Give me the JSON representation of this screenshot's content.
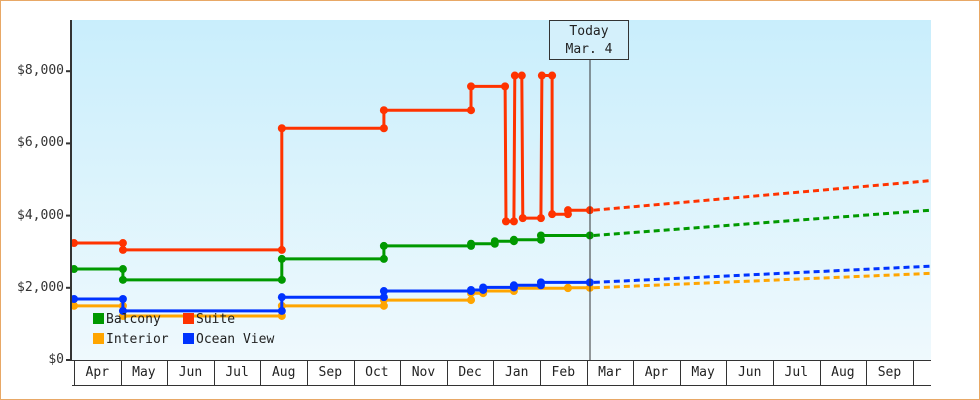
{
  "chart_data": {
    "type": "line",
    "title": "",
    "xlabel": "",
    "ylabel": "",
    "ylim": [
      0,
      9300
    ],
    "yticks": [
      {
        "value": 0,
        "label": "$0"
      },
      {
        "value": 2000,
        "label": "$2,000"
      },
      {
        "value": 4000,
        "label": "$4,000"
      },
      {
        "value": 6000,
        "label": "$6,000"
      },
      {
        "value": 8000,
        "label": "$8,000"
      }
    ],
    "categories": [
      "Apr",
      "May",
      "Jun",
      "Jul",
      "Aug",
      "Sep",
      "Oct",
      "Nov",
      "Dec",
      "Jan",
      "Feb",
      "Mar",
      "Apr",
      "May",
      "Jun",
      "Jul",
      "Aug",
      "Sep"
    ],
    "x_note": "x is fractional month offset from start of first Apr",
    "today_marker": {
      "line1": "Today",
      "line2": "Mar. 4",
      "x": 11.07
    },
    "series": [
      {
        "name": "Suite",
        "color": "#ff3300",
        "values": [
          [
            0,
            3240
          ],
          [
            1.05,
            3240
          ],
          [
            1.05,
            3050
          ],
          [
            4.46,
            3050
          ],
          [
            4.46,
            6420
          ],
          [
            6.65,
            6420
          ],
          [
            6.65,
            6920
          ],
          [
            8.52,
            6920
          ],
          [
            8.52,
            7580
          ],
          [
            9.25,
            7580
          ],
          [
            9.27,
            3840
          ],
          [
            9.44,
            3840
          ],
          [
            9.46,
            7880
          ],
          [
            9.61,
            7880
          ],
          [
            9.63,
            3930
          ],
          [
            10.02,
            3930
          ],
          [
            10.04,
            7880
          ],
          [
            10.26,
            7880
          ],
          [
            10.26,
            4040
          ],
          [
            10.6,
            4040
          ],
          [
            10.6,
            4150
          ],
          [
            11.07,
            4150
          ]
        ],
        "forecast": [
          [
            11.07,
            4150
          ],
          [
            18.39,
            4970
          ]
        ]
      },
      {
        "name": "Balcony",
        "color": "#009900",
        "values": [
          [
            0,
            2520
          ],
          [
            1.05,
            2520
          ],
          [
            1.05,
            2220
          ],
          [
            4.46,
            2220
          ],
          [
            4.46,
            2800
          ],
          [
            6.65,
            2800
          ],
          [
            6.65,
            3160
          ],
          [
            8.52,
            3160
          ],
          [
            8.52,
            3220
          ],
          [
            9.03,
            3220
          ],
          [
            9.03,
            3290
          ],
          [
            9.44,
            3290
          ],
          [
            9.44,
            3330
          ],
          [
            10.02,
            3330
          ],
          [
            10.02,
            3450
          ],
          [
            11.07,
            3450
          ]
        ],
        "forecast": [
          [
            11.07,
            3450
          ],
          [
            18.39,
            4150
          ]
        ]
      },
      {
        "name": "Interior",
        "color": "#ffa500",
        "values": [
          [
            0,
            1500
          ],
          [
            1.05,
            1500
          ],
          [
            1.05,
            1220
          ],
          [
            4.46,
            1220
          ],
          [
            4.46,
            1500
          ],
          [
            6.65,
            1500
          ],
          [
            6.65,
            1660
          ],
          [
            8.52,
            1660
          ],
          [
            8.52,
            1850
          ],
          [
            8.78,
            1850
          ],
          [
            8.78,
            1910
          ],
          [
            9.44,
            1910
          ],
          [
            9.44,
            1990
          ],
          [
            10.6,
            1990
          ],
          [
            10.6,
            2000
          ],
          [
            11.07,
            2000
          ]
        ],
        "forecast": [
          [
            11.07,
            2000
          ],
          [
            18.39,
            2400
          ]
        ]
      },
      {
        "name": "Ocean View",
        "color": "#0033ff",
        "values": [
          [
            0,
            1690
          ],
          [
            1.05,
            1690
          ],
          [
            1.05,
            1360
          ],
          [
            4.46,
            1360
          ],
          [
            4.46,
            1740
          ],
          [
            6.65,
            1740
          ],
          [
            6.65,
            1910
          ],
          [
            8.52,
            1910
          ],
          [
            8.52,
            1940
          ],
          [
            8.78,
            1940
          ],
          [
            8.78,
            2010
          ],
          [
            9.44,
            2010
          ],
          [
            9.44,
            2070
          ],
          [
            10.02,
            2070
          ],
          [
            10.02,
            2150
          ],
          [
            11.07,
            2150
          ]
        ],
        "forecast": [
          [
            11.07,
            2150
          ],
          [
            18.39,
            2600
          ]
        ]
      }
    ],
    "legend": {
      "position": "bottom-left inside plot",
      "entries": [
        "Balcony",
        "Suite",
        "Interior",
        "Ocean View"
      ]
    },
    "grid": false,
    "background": "gradient light blue (#c9eefc top to #eff9fd bottom)"
  },
  "legend": {
    "balcony": "Balcony",
    "suite": "Suite",
    "interior": "Interior",
    "ocean": "Ocean View"
  },
  "today": {
    "line1": "Today",
    "line2": "Mar. 4"
  }
}
